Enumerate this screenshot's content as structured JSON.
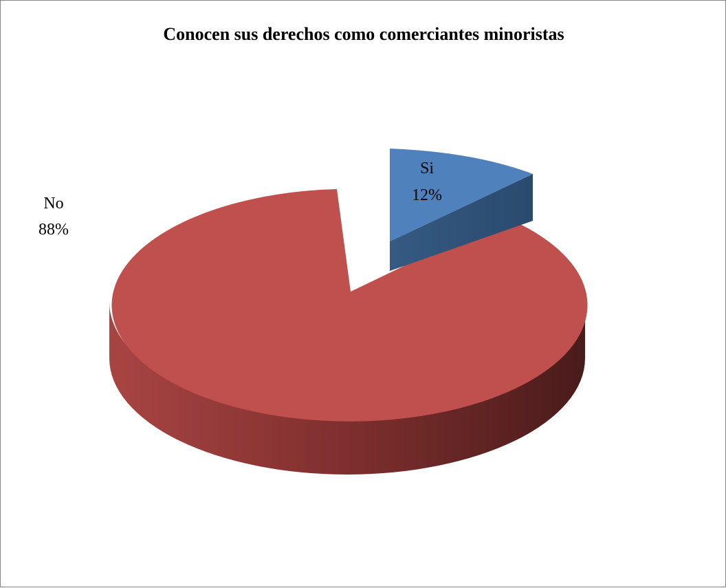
{
  "chart_data": {
    "type": "pie",
    "title": "Conocen sus derechos como comerciantes minoristas",
    "slices": [
      {
        "label": "Si",
        "value": 12,
        "display": "12%",
        "color": "#4f81bd",
        "exploded": true
      },
      {
        "label": "No",
        "value": 88,
        "display": "88%",
        "color": "#c0504d",
        "exploded": false
      }
    ],
    "legend": "none",
    "style": "3d-exploded"
  }
}
